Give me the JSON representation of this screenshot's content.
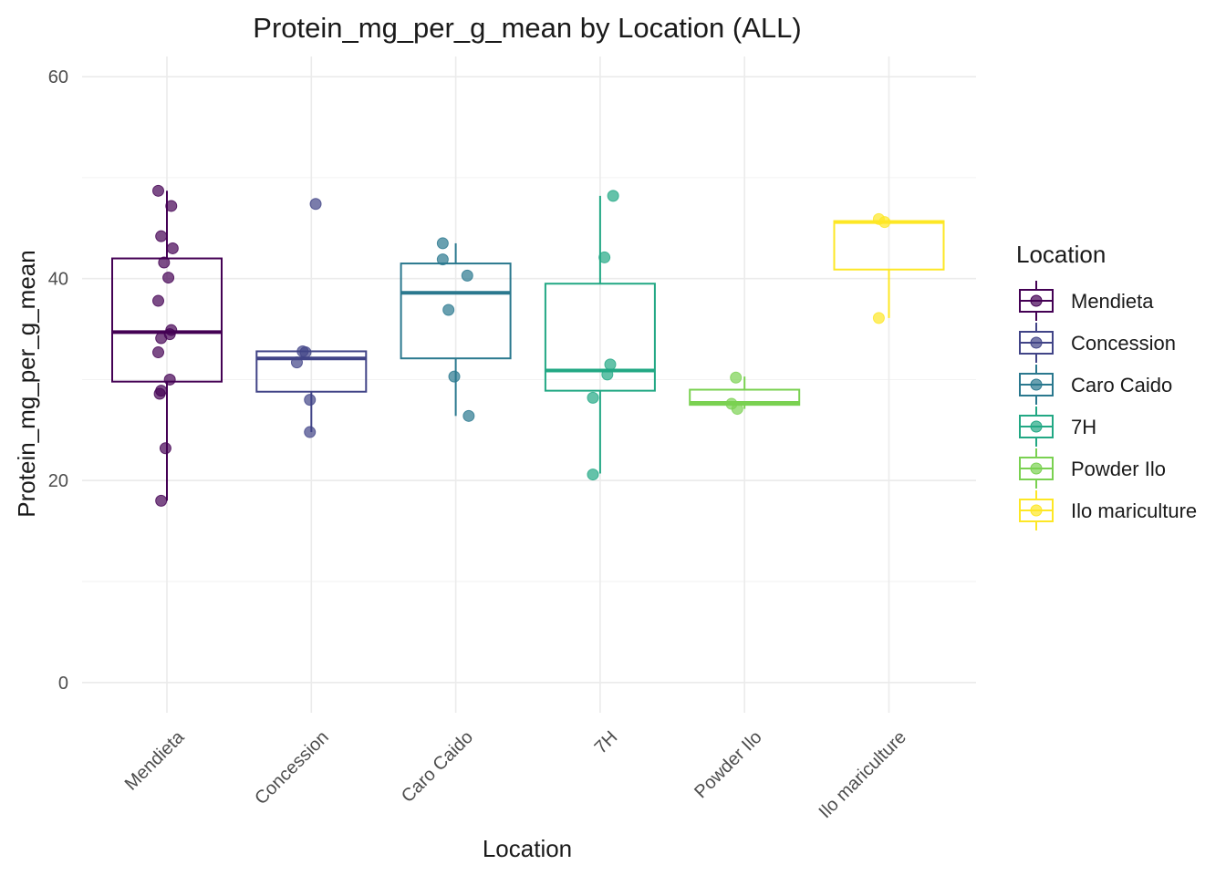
{
  "chart_data": {
    "type": "boxplot",
    "title": "Protein_mg_per_g_mean by Location (ALL)",
    "xlabel": "Location",
    "ylabel": "Protein_mg_per_g_mean",
    "ylim": [
      -3,
      62
    ],
    "yticks": [
      0,
      20,
      40,
      60
    ],
    "grid": true,
    "legend_title": "Location",
    "legend_position": "right",
    "categories": [
      "Mendieta",
      "Concession",
      "Caro Caido",
      "7H",
      "Powder Ilo",
      "Ilo mariculture"
    ],
    "colors": [
      "#440154",
      "#414487",
      "#2A788E",
      "#22A884",
      "#7AD151",
      "#FDE725"
    ],
    "boxes": [
      {
        "category": "Mendieta",
        "q1": 29.8,
        "median": 34.7,
        "q3": 42.0,
        "whisker_low": 18.0,
        "whisker_high": 48.7
      },
      {
        "category": "Concession",
        "q1": 28.8,
        "median": 32.1,
        "q3": 32.8,
        "whisker_low": 24.8,
        "whisker_high": 32.8
      },
      {
        "category": "Caro Caido",
        "q1": 32.1,
        "median": 38.6,
        "q3": 41.5,
        "whisker_low": 26.4,
        "whisker_high": 43.5
      },
      {
        "category": "7H",
        "q1": 28.9,
        "median": 30.9,
        "q3": 39.5,
        "whisker_low": 20.7,
        "whisker_high": 48.2
      },
      {
        "category": "Powder Ilo",
        "q1": 27.5,
        "median": 27.7,
        "q3": 29.0,
        "whisker_low": 27.1,
        "whisker_high": 30.3
      },
      {
        "category": "Ilo mariculture",
        "q1": 40.9,
        "median": 45.6,
        "q3": 45.7,
        "whisker_low": 36.1,
        "whisker_high": 45.9
      }
    ],
    "points": [
      {
        "category": "Mendieta",
        "values": [
          48.7,
          47.2,
          44.2,
          43.0,
          41.6,
          40.1,
          37.8,
          34.9,
          34.5,
          34.1,
          32.7,
          30.0,
          28.9,
          28.6,
          23.2,
          18.0
        ],
        "jitter": [
          -0.06,
          0.03,
          -0.04,
          0.04,
          -0.02,
          0.01,
          -0.06,
          0.03,
          0.02,
          -0.04,
          -0.06,
          0.02,
          -0.04,
          -0.05,
          -0.01,
          -0.04
        ]
      },
      {
        "category": "Concession",
        "values": [
          47.4,
          32.8,
          32.7,
          31.7,
          28.0,
          24.8
        ],
        "jitter": [
          0.03,
          -0.06,
          -0.04,
          -0.1,
          -0.01,
          -0.01
        ]
      },
      {
        "category": "Caro Caido",
        "values": [
          43.5,
          41.9,
          40.3,
          36.9,
          30.3,
          26.4
        ],
        "jitter": [
          -0.09,
          -0.09,
          0.08,
          -0.05,
          -0.01,
          0.09
        ]
      },
      {
        "category": "7H",
        "values": [
          48.2,
          42.1,
          31.5,
          30.5,
          28.2,
          20.6
        ],
        "jitter": [
          0.09,
          0.03,
          0.07,
          0.05,
          -0.05,
          -0.05
        ]
      },
      {
        "category": "Powder Ilo",
        "values": [
          30.2,
          27.6,
          27.1
        ],
        "jitter": [
          -0.06,
          -0.09,
          -0.05
        ]
      },
      {
        "category": "Ilo mariculture",
        "values": [
          45.9,
          45.6,
          36.1
        ],
        "jitter": [
          -0.07,
          -0.03,
          -0.07
        ]
      }
    ]
  }
}
